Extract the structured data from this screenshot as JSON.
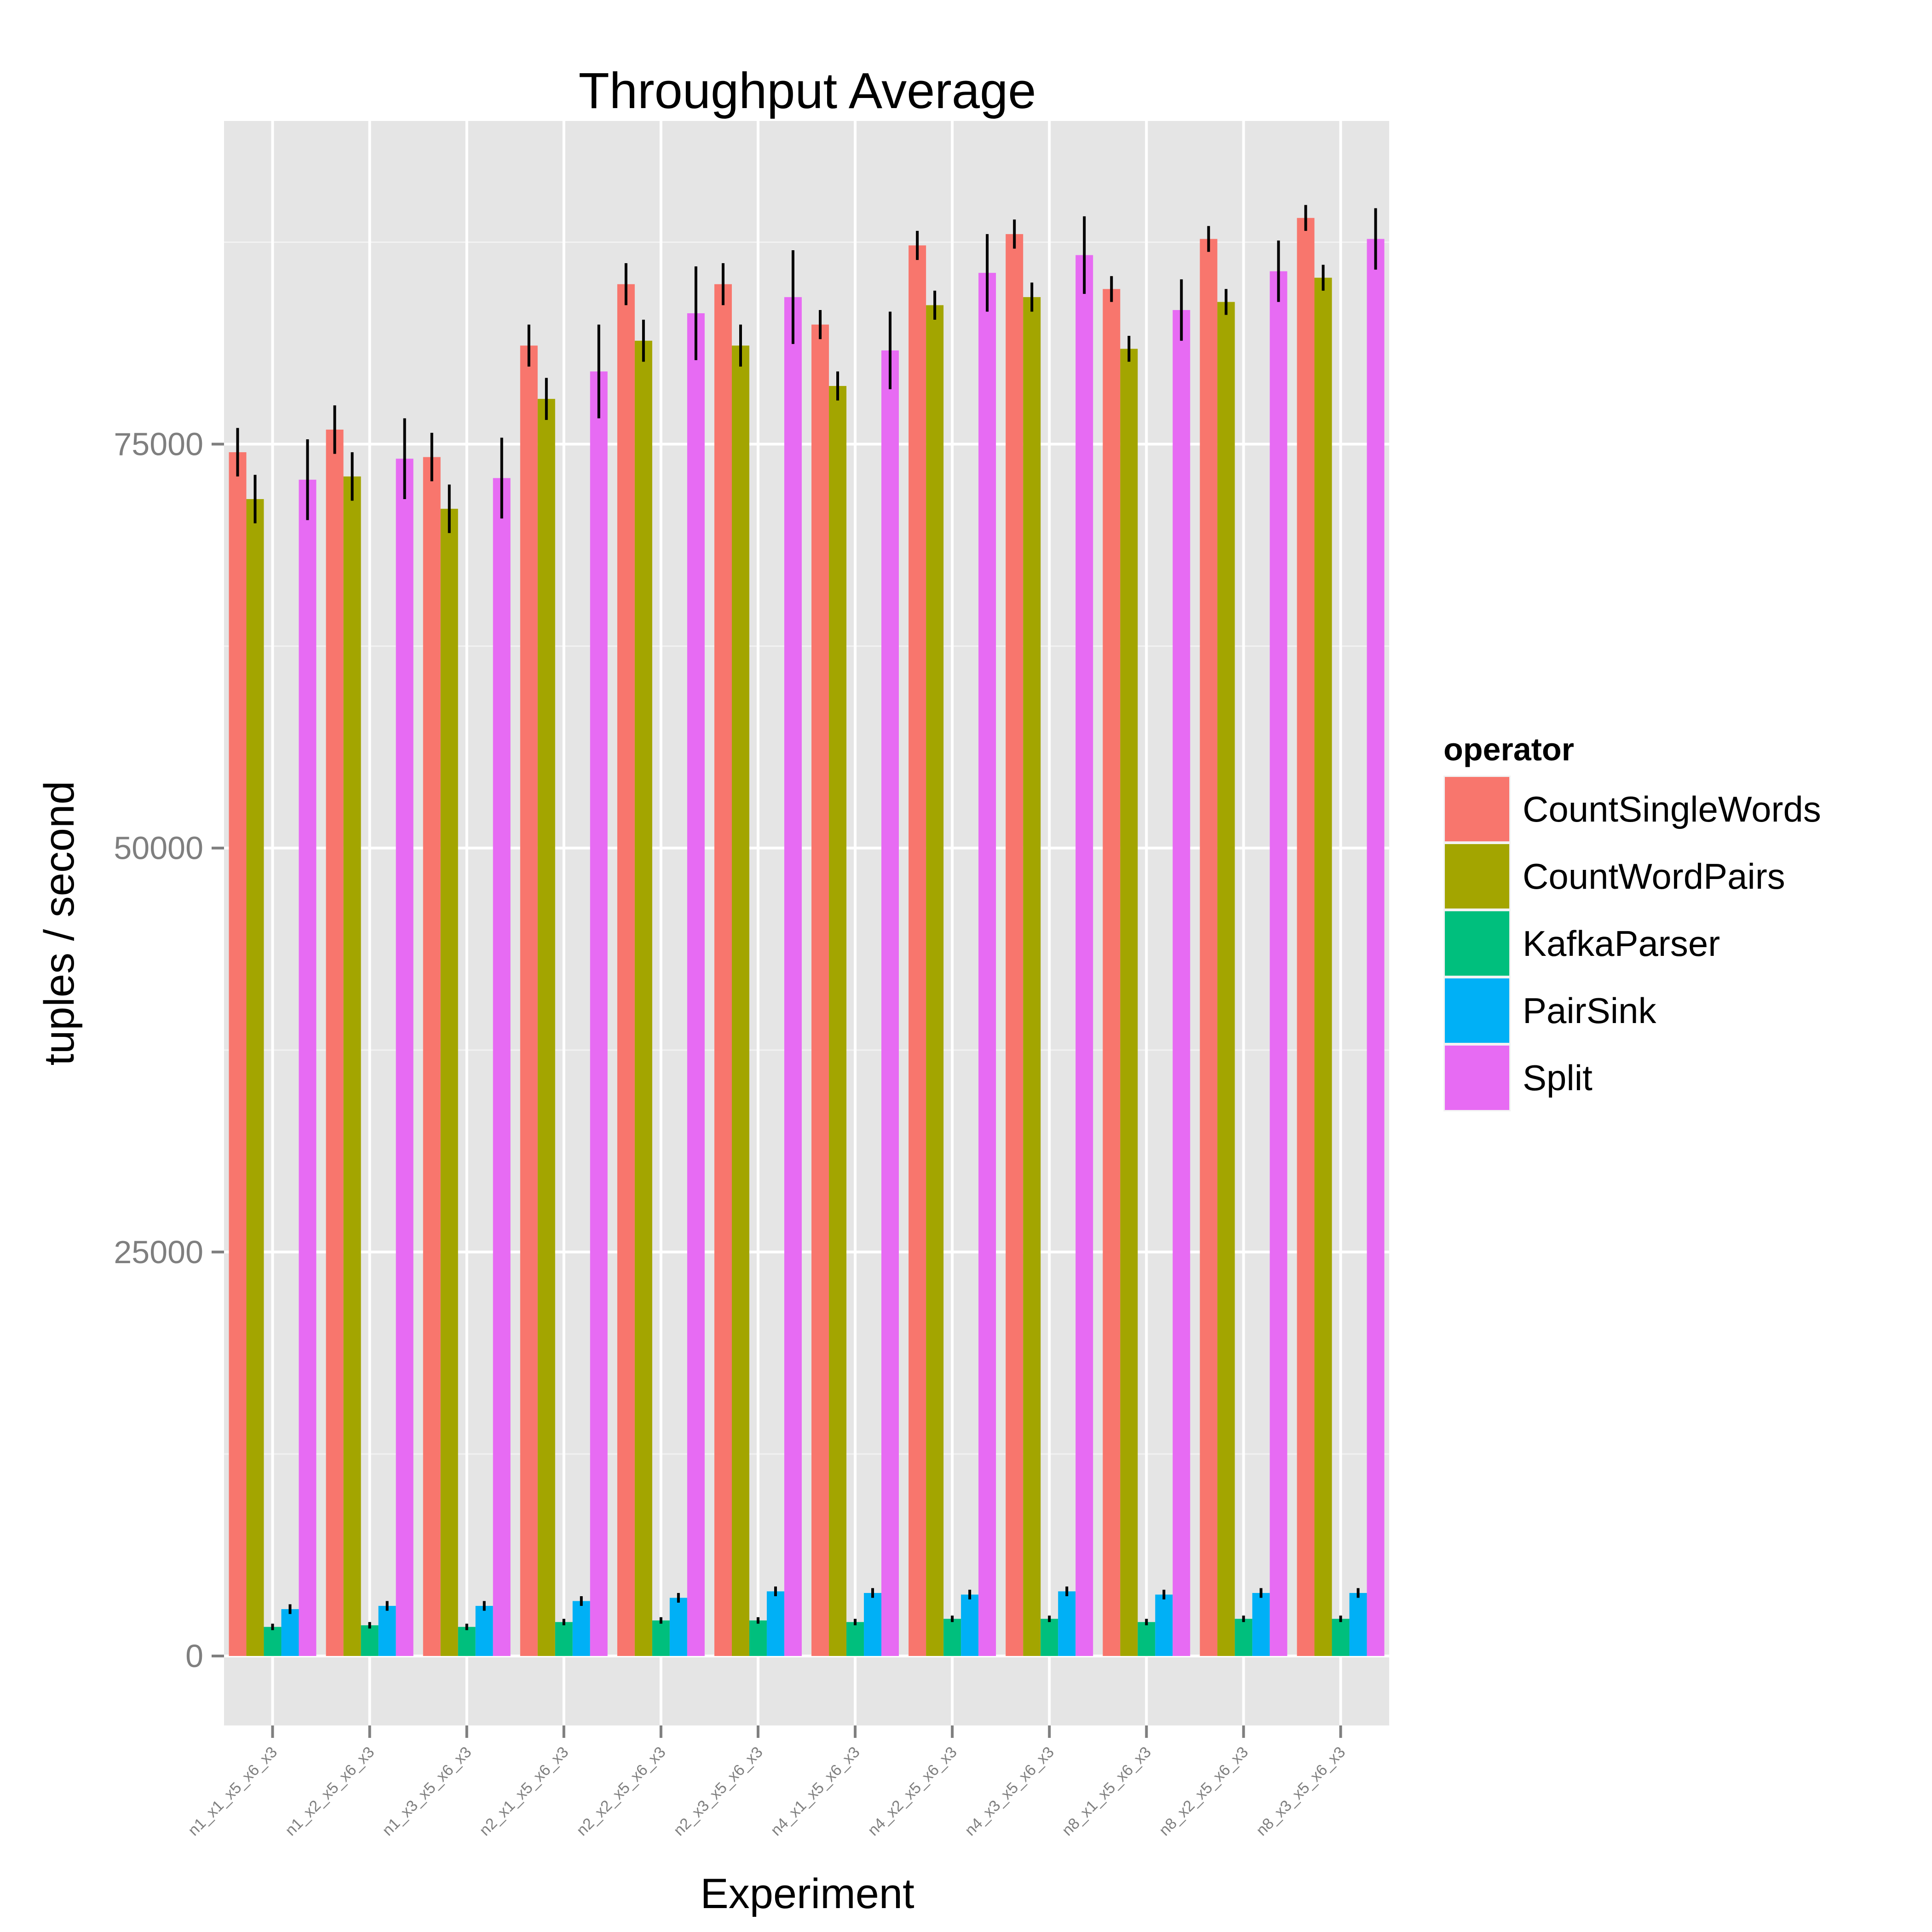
{
  "chart_data": {
    "type": "bar",
    "title": "Throughput Average",
    "xlabel": "Experiment",
    "ylabel": "tuples / second",
    "ylim": [
      -4300,
      95000
    ],
    "yticks": [
      0,
      25000,
      50000,
      75000
    ],
    "ytick_labels": [
      "0",
      "25000",
      "50000",
      "75000"
    ],
    "grid": true,
    "legend": {
      "title": "operator",
      "position": "right"
    },
    "categories": [
      "n1_x1_x5_x6_x3",
      "n1_x2_x5_x6_x3",
      "n1_x3_x5_x6_x3",
      "n2_x1_x5_x6_x3",
      "n2_x2_x5_x6_x3",
      "n2_x3_x5_x6_x3",
      "n4_x1_x5_x6_x3",
      "n4_x2_x5_x6_x3",
      "n4_x3_x5_x6_x3",
      "n8_x1_x5_x6_x3",
      "n8_x2_x5_x6_x3",
      "n8_x3_x5_x6_x3"
    ],
    "series": [
      {
        "name": "CountSingleWords",
        "color": "#F8766D",
        "values": [
          74500,
          75900,
          74200,
          81100,
          84900,
          84900,
          82400,
          87300,
          88000,
          84600,
          87700,
          89000
        ],
        "errors": [
          1500,
          1500,
          1500,
          1300,
          1300,
          1300,
          900,
          900,
          900,
          800,
          800,
          800
        ]
      },
      {
        "name": "CountWordPairs",
        "color": "#A3A500",
        "values": [
          71600,
          73000,
          71000,
          77800,
          81400,
          81100,
          78600,
          83600,
          84100,
          80900,
          83800,
          85300
        ],
        "errors": [
          1500,
          1500,
          1500,
          1300,
          1300,
          1300,
          900,
          900,
          900,
          800,
          800,
          800
        ]
      },
      {
        "name": "KafkaParser",
        "color": "#00BF7D",
        "values": [
          1800,
          1900,
          1800,
          2100,
          2200,
          2200,
          2100,
          2300,
          2300,
          2100,
          2300,
          2300
        ],
        "errors": [
          200,
          200,
          200,
          200,
          200,
          200,
          200,
          200,
          200,
          200,
          200,
          200
        ]
      },
      {
        "name": "PairSink",
        "color": "#00B0F6",
        "values": [
          2900,
          3100,
          3100,
          3400,
          3600,
          4000,
          3900,
          3800,
          4000,
          3800,
          3900,
          3900
        ],
        "errors": [
          300,
          300,
          300,
          300,
          300,
          300,
          300,
          300,
          300,
          300,
          300,
          300
        ]
      },
      {
        "name": "Split",
        "color": "#E76BF3",
        "values": [
          72800,
          74100,
          72900,
          79500,
          83100,
          84100,
          80800,
          85600,
          86700,
          83300,
          85700,
          87700
        ],
        "errors": [
          2500,
          2500,
          2500,
          2900,
          2900,
          2900,
          2400,
          2400,
          2400,
          1900,
          1900,
          1900
        ]
      }
    ]
  }
}
